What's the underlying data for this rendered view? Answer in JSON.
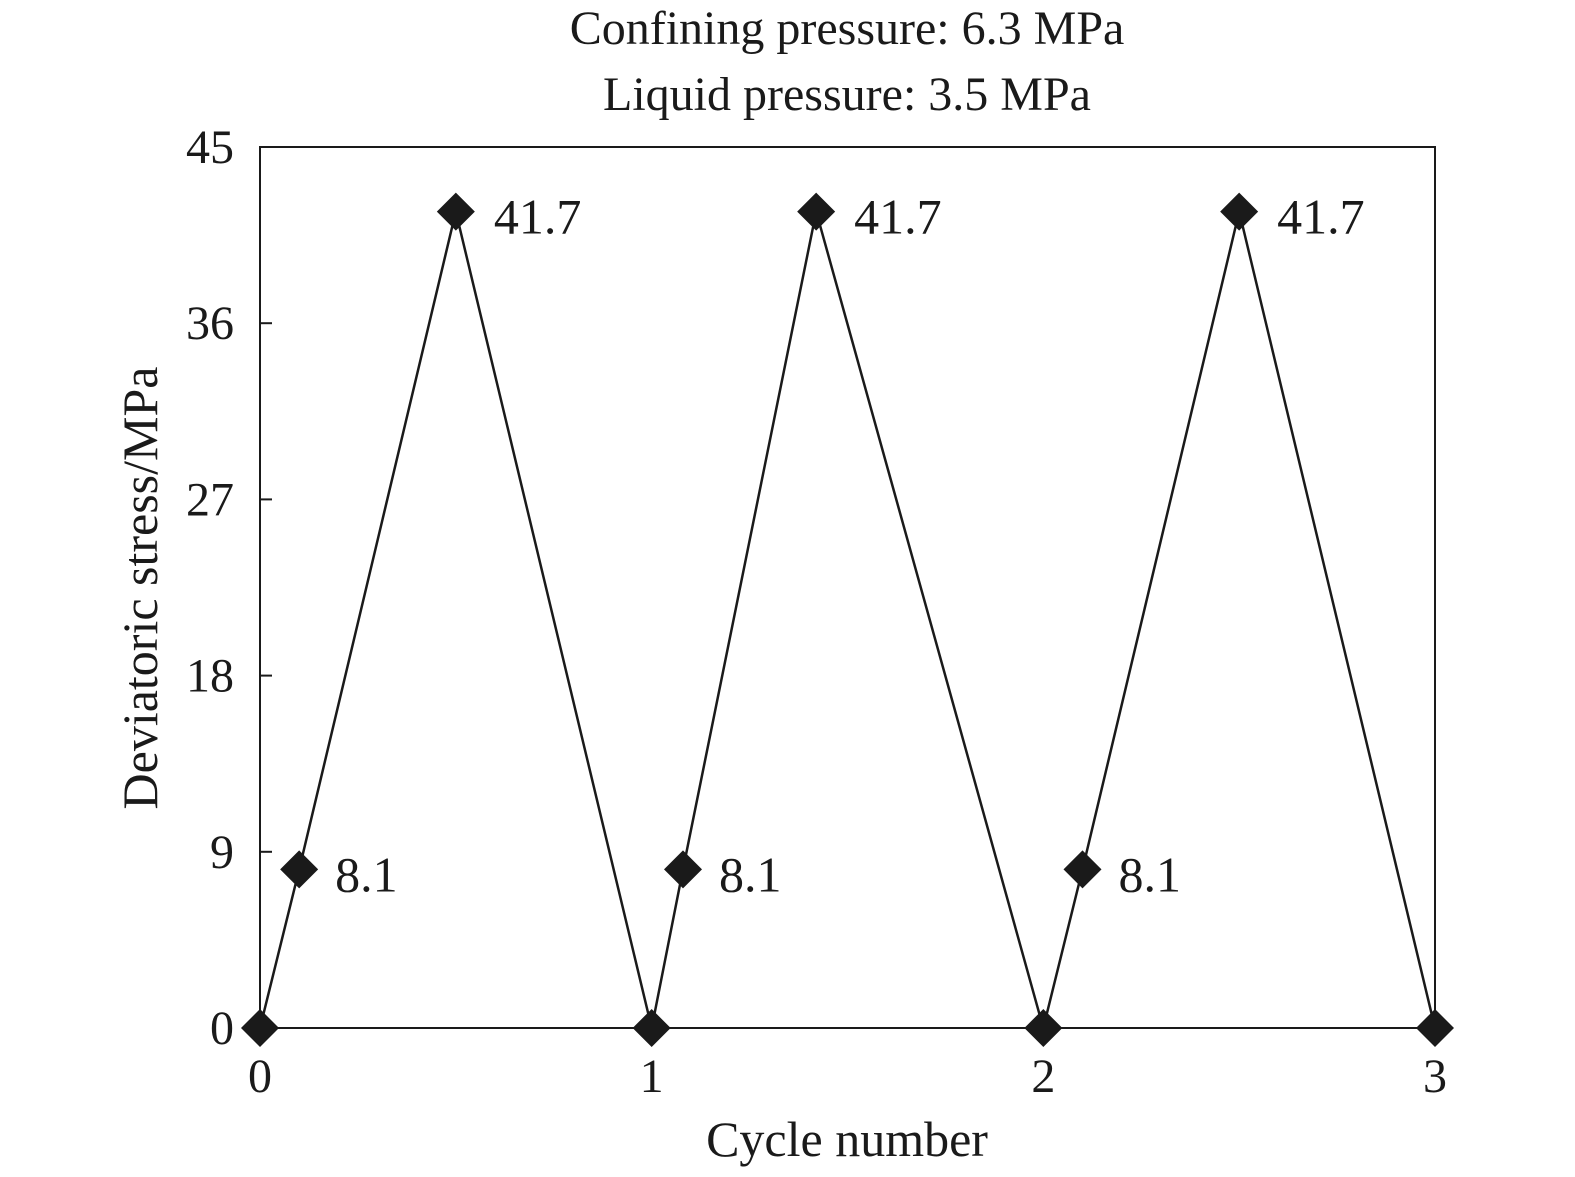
{
  "chart_data": {
    "type": "line",
    "title_lines": [
      "Confining pressure: 6.3 MPa",
      "Liquid pressure: 3.5 MPa"
    ],
    "xlabel": "Cycle number",
    "ylabel": "Deviatoric stress/MPa",
    "xlim": [
      0,
      3
    ],
    "ylim": [
      0,
      45
    ],
    "xticks": [
      0,
      1,
      2,
      3
    ],
    "yticks": [
      0,
      9,
      18,
      27,
      36,
      45
    ],
    "grid": false,
    "legend": "none",
    "series": [
      {
        "marker": "diamond",
        "color": "#1a1a1a",
        "points": [
          {
            "x": 0,
            "y": 0
          },
          {
            "x": 0.1,
            "y": 8.1,
            "label": "8.1"
          },
          {
            "x": 0.5,
            "y": 41.7,
            "label": "41.7"
          },
          {
            "x": 1,
            "y": 0
          },
          {
            "x": 1.08,
            "y": 8.1,
            "label": "8.1"
          },
          {
            "x": 1.42,
            "y": 41.7,
            "label": "41.7"
          },
          {
            "x": 2,
            "y": 0
          },
          {
            "x": 2.1,
            "y": 8.1,
            "label": "8.1"
          },
          {
            "x": 2.5,
            "y": 41.7,
            "label": "41.7"
          },
          {
            "x": 3,
            "y": 0
          }
        ]
      }
    ]
  }
}
